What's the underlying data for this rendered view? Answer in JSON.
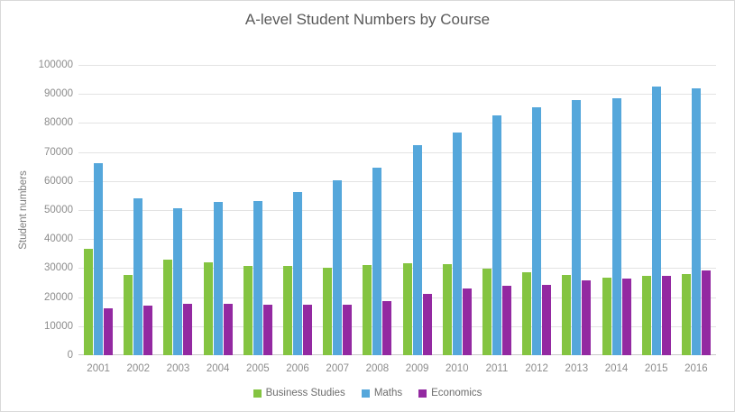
{
  "chart_data": {
    "type": "bar",
    "title": "A-level Student Numbers by Course",
    "xlabel": "",
    "ylabel": "Student numbers",
    "ylim": [
      0,
      100000
    ],
    "yticks": [
      0,
      10000,
      20000,
      30000,
      40000,
      50000,
      60000,
      70000,
      80000,
      90000,
      100000
    ],
    "grid": true,
    "legend_position": "bottom",
    "categories": [
      "2001",
      "2002",
      "2003",
      "2004",
      "2005",
      "2006",
      "2007",
      "2008",
      "2009",
      "2010",
      "2011",
      "2012",
      "2013",
      "2014",
      "2015",
      "2016"
    ],
    "series": [
      {
        "name": "Business Studies",
        "color": "#84c441",
        "values": [
          36700,
          27600,
          33000,
          32100,
          30700,
          30600,
          30200,
          31000,
          31700,
          31500,
          29700,
          28500,
          27500,
          26700,
          27200,
          28000
        ]
      },
      {
        "name": "Maths",
        "color": "#55a7db",
        "values": [
          66200,
          54000,
          50600,
          52700,
          53000,
          56100,
          60200,
          64500,
          72500,
          76800,
          82700,
          85500,
          87900,
          88600,
          92500,
          91900
        ]
      },
      {
        "name": "Economics",
        "color": "#9329a1",
        "values": [
          16000,
          17000,
          17800,
          17700,
          17500,
          17400,
          17400,
          18600,
          21000,
          23000,
          23900,
          24200,
          25900,
          26400,
          27300,
          29100
        ]
      }
    ]
  }
}
